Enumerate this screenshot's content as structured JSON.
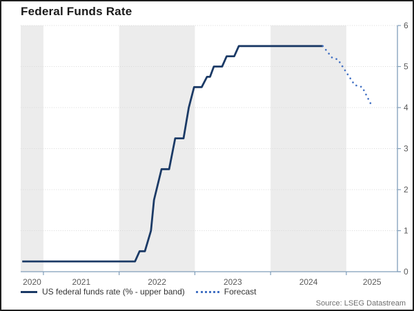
{
  "header": {
    "title": "Federal Funds Rate"
  },
  "source": "Source: LSEG Datastream",
  "legend": [
    {
      "label": "US federal funds rate (% - upper band)",
      "style": "solid",
      "color": "#1b3a66"
    },
    {
      "label": "Forecast",
      "style": "dotted",
      "color": "#4472c4"
    }
  ],
  "colors": {
    "line": "#1b3a66",
    "forecast": "#4472c4",
    "axis": "#7f9db9",
    "grid": "#d7d7d7",
    "band": "#ececec",
    "tick_label": "#595959",
    "title_text": "#1a1a1a",
    "legend_text": "#333333",
    "source_text": "#6e6e6e",
    "border": "#1e1e1e"
  },
  "chart_data": {
    "type": "line",
    "title": "Federal Funds Rate",
    "xlabel": "",
    "ylabel": "",
    "x_range": [
      2020.7,
      2025.675
    ],
    "y_range": [
      0,
      6
    ],
    "y_ticks": [
      0,
      1,
      2,
      3,
      4,
      5,
      6
    ],
    "x_ticks": [
      2021,
      2022,
      2023,
      2024,
      2025
    ],
    "year_labels": [
      {
        "label": "2020",
        "center": 2020.85
      },
      {
        "label": "2021",
        "center": 2021.5
      },
      {
        "label": "2022",
        "center": 2022.5
      },
      {
        "label": "2023",
        "center": 2023.5
      },
      {
        "label": "2024",
        "center": 2024.5
      },
      {
        "label": "2025",
        "center": 2025.34
      }
    ],
    "shaded_year_bands": [
      [
        2020.7,
        2021
      ],
      [
        2022,
        2023
      ],
      [
        2024,
        2025
      ]
    ],
    "grid": "horizontal-dotted",
    "legend_position": "bottom-left",
    "series": [
      {
        "name": "US federal funds rate (% - upper band)",
        "style": "solid",
        "color": "#1b3a66",
        "points": [
          [
            2020.72,
            0.25
          ],
          [
            2022.21,
            0.25
          ],
          [
            2022.27,
            0.5
          ],
          [
            2022.34,
            0.5
          ],
          [
            2022.42,
            1.0
          ],
          [
            2022.46,
            1.75
          ],
          [
            2022.56,
            2.5
          ],
          [
            2022.66,
            2.5
          ],
          [
            2022.74,
            3.25
          ],
          [
            2022.85,
            3.25
          ],
          [
            2022.92,
            4.0
          ],
          [
            2022.99,
            4.5
          ],
          [
            2023.09,
            4.5
          ],
          [
            2023.16,
            4.75
          ],
          [
            2023.2,
            4.75
          ],
          [
            2023.25,
            5.0
          ],
          [
            2023.36,
            5.0
          ],
          [
            2023.42,
            5.25
          ],
          [
            2023.52,
            5.25
          ],
          [
            2023.58,
            5.5
          ],
          [
            2024.69,
            5.5
          ]
        ]
      },
      {
        "name": "Forecast",
        "style": "dotted",
        "color": "#4472c4",
        "points": [
          [
            2024.69,
            5.5
          ],
          [
            2024.81,
            5.22
          ],
          [
            2024.89,
            5.17
          ],
          [
            2025.11,
            4.55
          ],
          [
            2025.21,
            4.5
          ],
          [
            2025.34,
            4.03
          ]
        ]
      }
    ]
  }
}
